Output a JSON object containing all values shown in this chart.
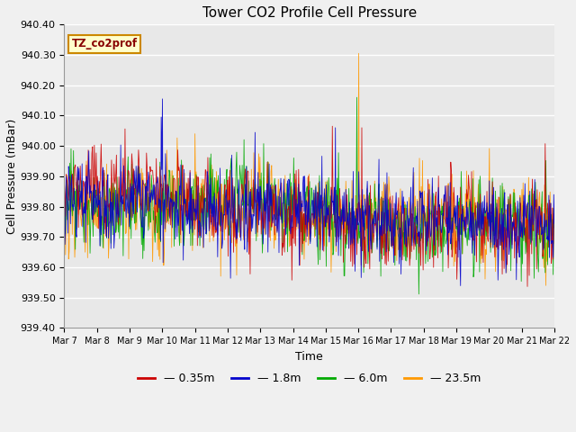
{
  "title": "Tower CO2 Profile Cell Pressure",
  "xlabel": "Time",
  "ylabel": "Cell Pressure (mBar)",
  "ylim": [
    939.4,
    940.4
  ],
  "yticks": [
    939.4,
    939.5,
    939.6,
    939.7,
    939.8,
    939.9,
    940.0,
    940.1,
    940.2,
    940.3,
    940.4
  ],
  "xtick_labels": [
    "Mar 7",
    "Mar 8",
    "Mar 9",
    "Mar 10",
    "Mar 11",
    "Mar 12",
    "Mar 13",
    "Mar 14",
    "Mar 15",
    "Mar 16",
    "Mar 17",
    "Mar 18",
    "Mar 19",
    "Mar 20",
    "Mar 21",
    "Mar 22"
  ],
  "series_colors": [
    "#cc0000",
    "#0000cc",
    "#00aa00",
    "#ff9900"
  ],
  "series_labels": [
    "0.35m",
    "1.8m",
    "6.0m",
    "23.5m"
  ],
  "legend_label": "TZ_co2prof",
  "legend_bg": "#ffffcc",
  "legend_border": "#cc8800",
  "plot_bg": "#e8e8e8",
  "fig_bg": "#f0f0f0",
  "n_points": 800,
  "base_value": 939.78,
  "random_seed": 7
}
